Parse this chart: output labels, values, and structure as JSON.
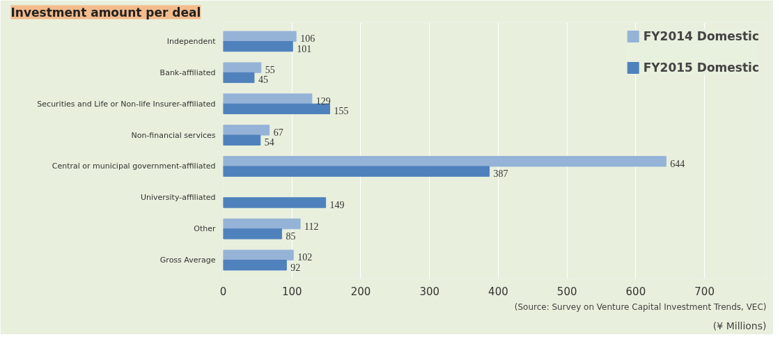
{
  "chart_data": {
    "type": "bar",
    "orientation": "horizontal",
    "title": "Investment amount per deal",
    "xlabel": "(¥ Millions)",
    "categories": [
      "Independent",
      "Bank-affiliated",
      "Securities and Life or Non-life Insurer-affiliated",
      "Non-financial services",
      "Central or municipal government-affiliated",
      "University-affiliated",
      "Other",
      "Gross Average"
    ],
    "series": [
      {
        "name": "FY2014 Domestic",
        "color": "#95b3d7",
        "values": [
          106,
          55,
          129,
          67,
          644,
          null,
          112,
          102
        ]
      },
      {
        "name": "FY2015 Domestic",
        "color": "#4f81bd",
        "values": [
          101,
          45,
          155,
          54,
          387,
          149,
          85,
          92
        ]
      }
    ],
    "xlim": [
      0,
      790
    ],
    "xticks": [
      0,
      100,
      200,
      300,
      400,
      500,
      600,
      700
    ],
    "grid": "x",
    "legend": "top right",
    "data_labels": true,
    "annotations": [
      "(Source: Survey on Venture Capital Investment Trends, VEC)"
    ]
  }
}
